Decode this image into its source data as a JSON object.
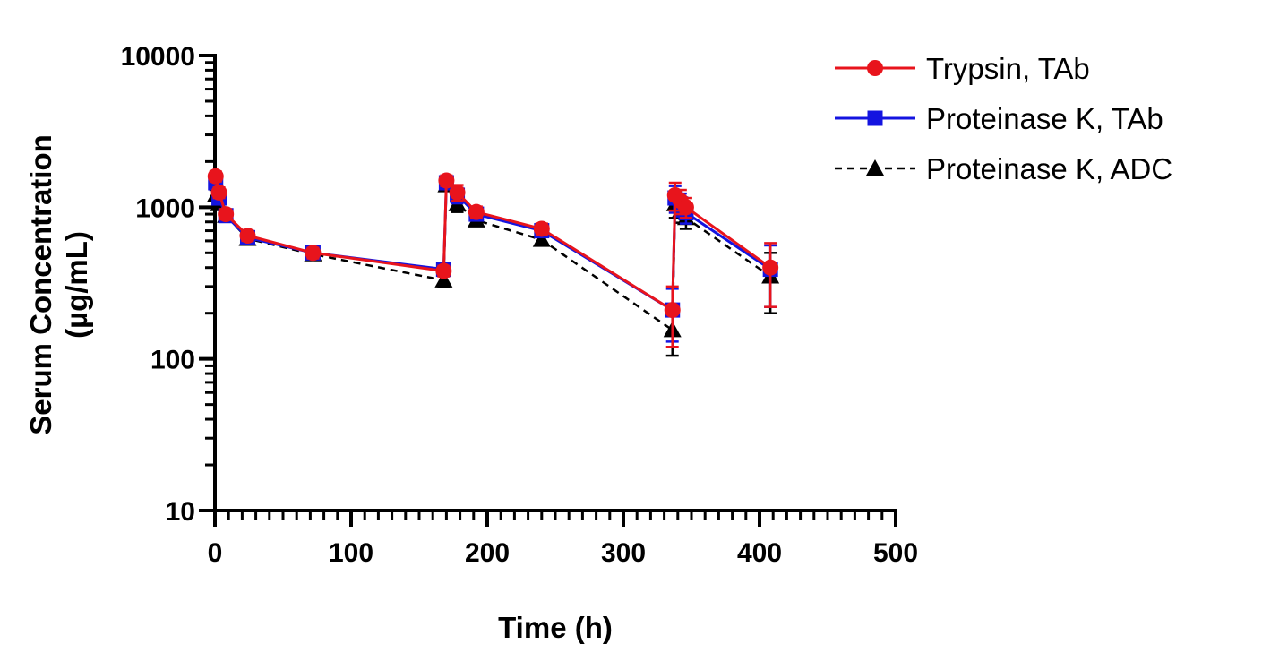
{
  "chart_data": {
    "type": "line",
    "xlabel": "Time (h)",
    "ylabel_lines": [
      "Serum Concentration",
      "(µg/mL)"
    ],
    "xlim": [
      0,
      500
    ],
    "ylim": [
      10,
      10000
    ],
    "yscale": "log",
    "xticks": [
      0,
      100,
      200,
      300,
      400,
      500
    ],
    "yticks": [
      10,
      100,
      1000,
      10000
    ],
    "grid": false,
    "legend_position": "top-right",
    "series": [
      {
        "name": "Trypsin, TAb",
        "color": "#e8141c",
        "marker": "circle",
        "line": "solid",
        "x": [
          0.5,
          3,
          8,
          24,
          72,
          168,
          170,
          178,
          192,
          240,
          336,
          338,
          342,
          346,
          408
        ],
        "y": [
          1600,
          1250,
          900,
          650,
          500,
          380,
          1500,
          1250,
          930,
          720,
          210,
          1200,
          1100,
          1000,
          400
        ],
        "err": [
          120,
          100,
          70,
          50,
          40,
          30,
          120,
          150,
          80,
          60,
          90,
          250,
          200,
          150,
          180
        ]
      },
      {
        "name": "Proteinase K, TAb",
        "color": "#1414e0",
        "marker": "square",
        "line": "solid",
        "x": [
          0.5,
          3,
          8,
          24,
          72,
          168,
          170,
          178,
          192,
          240,
          336,
          338,
          342,
          346,
          408
        ],
        "y": [
          1450,
          1150,
          880,
          630,
          500,
          390,
          1450,
          1200,
          900,
          700,
          210,
          1150,
          1050,
          920,
          390
        ],
        "err": [
          100,
          90,
          60,
          50,
          40,
          30,
          110,
          140,
          70,
          60,
          80,
          230,
          180,
          140,
          170
        ]
      },
      {
        "name": "Proteinase K, ADC",
        "color": "#000000",
        "marker": "triangle",
        "line": "dashed",
        "x": [
          0.5,
          3,
          8,
          24,
          72,
          168,
          170,
          178,
          192,
          240,
          336,
          338,
          342,
          346,
          408
        ],
        "y": [
          1200,
          1050,
          880,
          620,
          490,
          330,
          1400,
          1050,
          820,
          610,
          155,
          1050,
          950,
          850,
          350
        ],
        "err": [
          100,
          80,
          60,
          40,
          40,
          30,
          100,
          120,
          60,
          50,
          50,
          200,
          160,
          130,
          150
        ]
      }
    ]
  }
}
